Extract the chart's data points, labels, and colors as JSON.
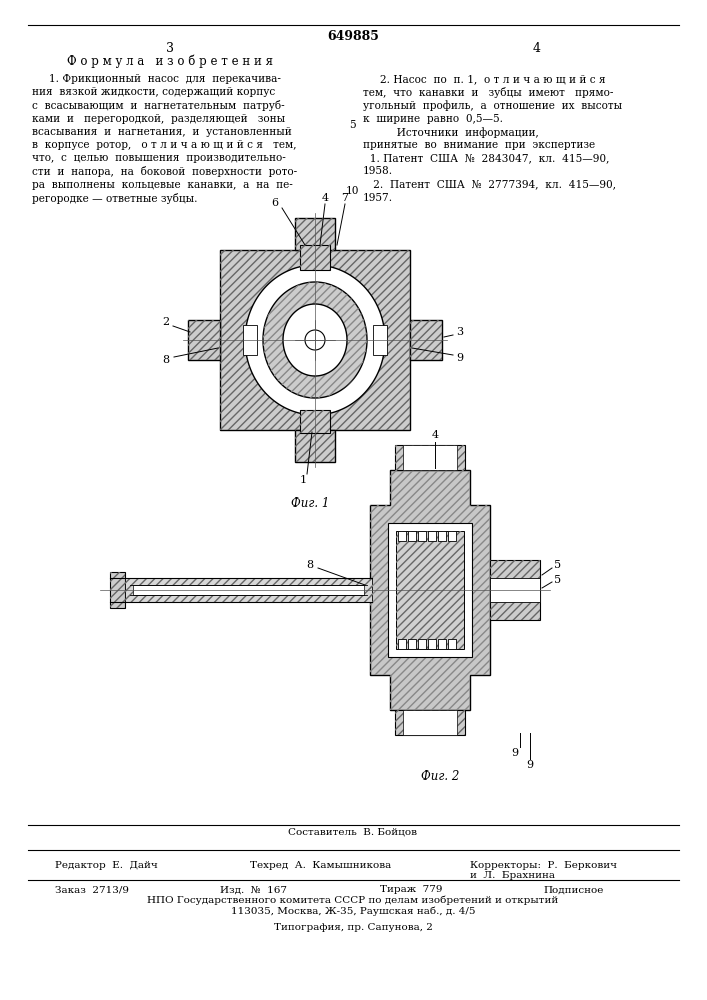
{
  "patent_number": "649885",
  "page_left": "3",
  "page_right": "4",
  "section_left_title": "Ф о р м у л а   и з о б р е т е н и я",
  "text_col1": [
    "     1. Фрикционный  насос  для  перекачива-",
    "ния  вязкой жидкости, содержащий корпус",
    "с  всасывающим  и  нагнетательным  патруб-",
    "ками  и   перегородкой,  разделяющей   зоны",
    "всасывания  и  нагнетания,  и  установленный",
    "в  корпусе  ротор,   о т л и ч а ю щ и й с я   тем,",
    "что,  с  целью  повышения  производительно-",
    "сти  и  напора,  на  боковой  поверхности  рото-",
    "ра  выполнены  кольцевые  канавки,  а  на  пе-",
    "регородке — ответные зубцы."
  ],
  "text_col2": [
    "     2. Насос  по  п. 1,  о т л и ч а ю щ и й с я",
    "тем,  что  канавки  и   зубцы  имеют   прямо-",
    "угольный  профиль,  а  отношение  их  высоты",
    "к  ширине  равно  0,5—5.",
    "          Источники  информации,",
    "принятые  во  внимание  при  экспертизе",
    "  1. Патент  США  №  2843047,  кл.  415—90,",
    "1958.",
    "   2.  Патент  США  №  2777394,  кл.  415—90,",
    "1957."
  ],
  "line_number_5": "5",
  "line_number_10": "10",
  "fig1_caption": "Фиг. 1",
  "fig2_caption": "Фиг. 2",
  "bottom_section": {
    "composer_title": "Составитель  В. Бойцов",
    "editor": "Редактор  Е.  Дайч",
    "tech": "Техред  А.  Камышникова",
    "corrector": "Корректоры:  Р.  Беркович",
    "corrector2": "и  Л.  Брахнина",
    "order": "Заказ  2713/9",
    "issue": "Изд.  №  167",
    "circulation": "Тираж  779",
    "signed": "Подписное",
    "org_line1": "НПО Государственного комитета СССР по делам изобретений и открытий",
    "org_line2": "113035, Москва, Ж-35, Раушская наб., д. 4/5",
    "print_line": "Типография, пр. Сапунова, 2"
  },
  "bg_color": "#ffffff"
}
